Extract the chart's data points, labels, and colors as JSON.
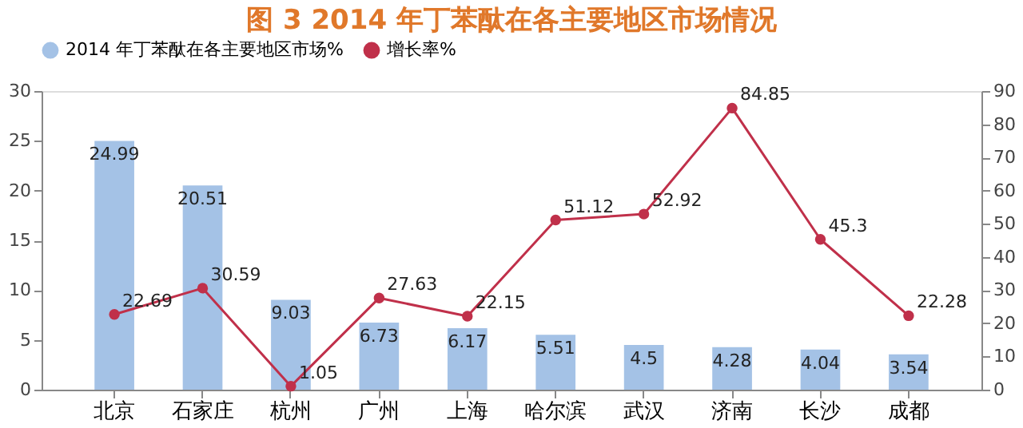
{
  "chart_data": {
    "type": "bar",
    "title": "图 3    2014 年丁苯酞在各主要地区市场情况",
    "categories": [
      "北京",
      "石家庄",
      "杭州",
      "广州",
      "上海",
      "哈尔滨",
      "武汉",
      "济南",
      "长沙",
      "成都"
    ],
    "series": [
      {
        "name": "2014 年丁苯酞在各主要地区市场%",
        "color": "#a4c2e6",
        "values": [
          24.99,
          20.51,
          9.03,
          6.73,
          6.17,
          5.51,
          4.5,
          4.28,
          4.04,
          3.54
        ]
      },
      {
        "name": "增长率%",
        "type": "line",
        "axis": "y2",
        "color": "#c0304a",
        "marker": "circle",
        "values": [
          22.69,
          30.59,
          1.05,
          27.63,
          22.15,
          51.12,
          52.92,
          84.85,
          45.3,
          22.28
        ]
      }
    ],
    "ylim": [
      0,
      30
    ],
    "yticks": [
      0,
      5,
      10,
      15,
      20,
      25,
      30
    ],
    "y2lim": [
      0,
      90
    ],
    "y2ticks": [
      0,
      10,
      20,
      30,
      40,
      50,
      60,
      70,
      80,
      90
    ],
    "data_labels": true,
    "grid": false,
    "legend": "top"
  }
}
